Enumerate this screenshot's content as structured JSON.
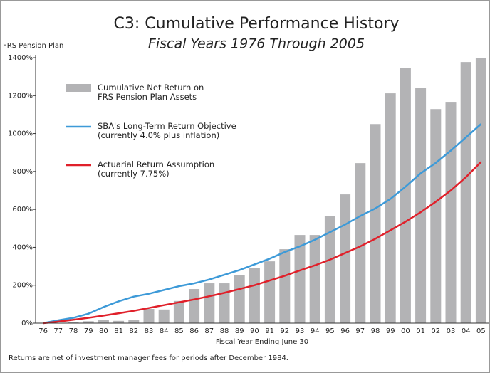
{
  "chart_data": {
    "type": "bar",
    "title": "C3:  Cumulative Performance History",
    "subtitle": "Fiscal Years 1976 Through 2005",
    "y_label": "FRS Pension Plan",
    "x_label": "Fiscal Year Ending June 30",
    "note": "Returns are net of investment manager fees for periods after December 1984.",
    "categories": [
      "76",
      "77",
      "78",
      "79",
      "80",
      "81",
      "82",
      "83",
      "84",
      "85",
      "86",
      "87",
      "88",
      "89",
      "90",
      "91",
      "92",
      "93",
      "94",
      "95",
      "96",
      "97",
      "98",
      "99",
      "00",
      "01",
      "02",
      "03",
      "04",
      "05"
    ],
    "series": [
      {
        "name": "Cumulative Net Return on\nFRS Pension Plan Assets",
        "type": "bar",
        "color": "#b3b3b5",
        "values": [
          0,
          2,
          5,
          10,
          15,
          12,
          15,
          75,
          72,
          117,
          180,
          210,
          210,
          252,
          289,
          326,
          390,
          465,
          465,
          566,
          679,
          844,
          1050,
          1212,
          1347,
          1242,
          1129,
          1167,
          1377,
          1400
        ]
      },
      {
        "name": "SBA's Long-Term Return Objective\n(currently 4.0% plus inflation)",
        "type": "line",
        "color": "#3d9ad8",
        "values": [
          0,
          15,
          28,
          50,
          85,
          115,
          140,
          155,
          175,
          195,
          210,
          230,
          255,
          280,
          310,
          340,
          375,
          405,
          440,
          480,
          520,
          565,
          605,
          655,
          720,
          790,
          845,
          910,
          980,
          1050
        ]
      },
      {
        "name": "Actuarial Return Assumption\n(currently 7.75%)",
        "type": "line",
        "color": "#e0202a",
        "values": [
          0,
          8,
          18,
          28,
          40,
          52,
          65,
          80,
          95,
          110,
          125,
          142,
          160,
          180,
          200,
          225,
          250,
          278,
          305,
          335,
          370,
          405,
          445,
          490,
          535,
          585,
          640,
          700,
          770,
          850
        ]
      }
    ],
    "ylim": [
      0,
      1400
    ],
    "yticks": [
      {
        "value": 0,
        "label": "0%"
      },
      {
        "value": 200,
        "label": "200%"
      },
      {
        "value": 400,
        "label": "400%"
      },
      {
        "value": 600,
        "label": "600%"
      },
      {
        "value": 800,
        "label": "800%"
      },
      {
        "value": 1000,
        "label": "1000%"
      },
      {
        "value": 1200,
        "label": "1200%"
      },
      {
        "value": 1400,
        "label": "1400%"
      }
    ],
    "grid": false
  }
}
